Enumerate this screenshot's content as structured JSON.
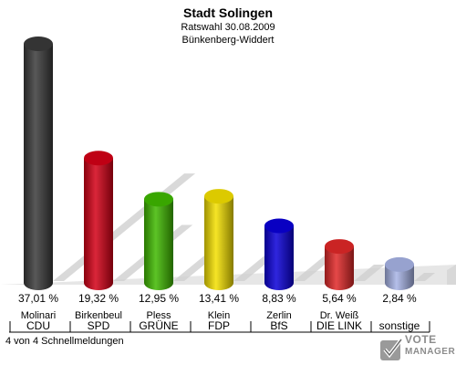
{
  "header": {
    "title": "Stadt Solingen",
    "subtitle": "Ratswahl 30.08.2009",
    "district": "Bünkenberg-Widdert"
  },
  "footer": {
    "reports": "4 von 4 Schnellmeldungen",
    "logo_line1": "VOTE",
    "logo_line2": "MANAGER"
  },
  "chart_data": {
    "type": "bar",
    "categories": [
      "CDU",
      "SPD",
      "GRÜNE",
      "FDP",
      "BfS",
      "DIE LINKE",
      "sonstige"
    ],
    "candidates": [
      "Molinari",
      "Birkenbeul",
      "Pless",
      "Klein",
      "Zerlin",
      "Dr. Weiß",
      ""
    ],
    "category_labels": [
      "CDU",
      "SPD",
      "GRÜNE",
      "FDP",
      "BfS",
      "DIE LINK",
      "sonstige"
    ],
    "values": [
      37.01,
      19.32,
      12.95,
      13.41,
      8.83,
      5.64,
      2.84
    ],
    "value_labels": [
      "37,01 %",
      "19,32 %",
      "12,95 %",
      "13,41 %",
      "8,83 %",
      "5,64 %",
      "2,84 %"
    ],
    "colors": [
      "#3a3a3a",
      "#d40016",
      "#3fb800",
      "#f4e000",
      "#0a00d8",
      "#e02828",
      "#a8b4e6"
    ],
    "ylim": [
      0,
      40
    ],
    "grid": false,
    "legend": "none"
  }
}
